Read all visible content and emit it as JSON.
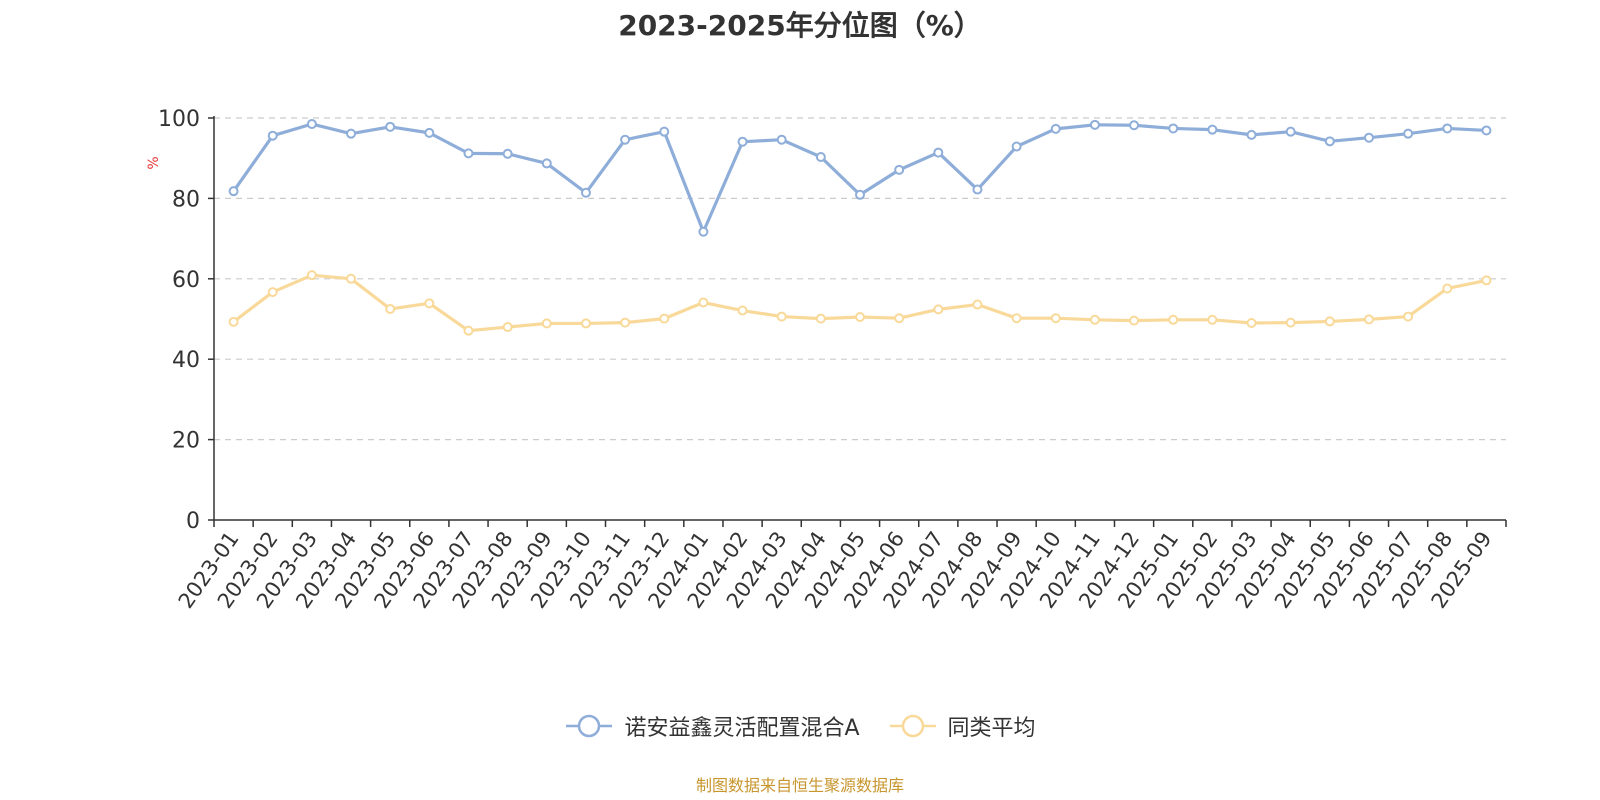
{
  "chart_data": {
    "type": "line",
    "title": "2023-2025年分位图（%）",
    "ylabel": "%",
    "xlabel": "",
    "ylim": [
      0,
      100
    ],
    "yticks": [
      0,
      20,
      40,
      60,
      80,
      100
    ],
    "grid": true,
    "legend_position": "bottom",
    "categories": [
      "2023-01",
      "2023-02",
      "2023-03",
      "2023-04",
      "2023-05",
      "2023-06",
      "2023-07",
      "2023-08",
      "2023-09",
      "2023-10",
      "2023-11",
      "2023-12",
      "2024-01",
      "2024-02",
      "2024-03",
      "2024-04",
      "2024-05",
      "2024-06",
      "2024-07",
      "2024-08",
      "2024-09",
      "2024-10",
      "2024-11",
      "2024-12",
      "2025-01",
      "2025-02",
      "2025-03",
      "2025-04",
      "2025-05",
      "2025-06",
      "2025-07",
      "2025-08",
      "2025-09"
    ],
    "series": [
      {
        "name": "诺安益鑫灵活配置混合A",
        "color": "#8eadd9",
        "values": [
          81.8,
          95.6,
          98.5,
          96.1,
          97.8,
          96.3,
          91.2,
          91.1,
          88.7,
          81.4,
          94.6,
          96.6,
          71.7,
          94.1,
          94.6,
          90.3,
          80.9,
          87.1,
          91.4,
          82.2,
          92.9,
          97.3,
          98.3,
          98.2,
          97.4,
          97.1,
          95.8,
          96.6,
          94.2,
          95.1,
          96.1,
          97.4,
          96.9
        ]
      },
      {
        "name": "同类平均",
        "color": "#f9d99a",
        "values": [
          49.3,
          56.7,
          60.9,
          60.0,
          52.5,
          53.9,
          47.1,
          48.0,
          48.9,
          48.9,
          49.1,
          50.1,
          54.1,
          52.1,
          50.6,
          50.1,
          50.5,
          50.2,
          52.4,
          53.6,
          50.2,
          50.2,
          49.8,
          49.6,
          49.8,
          49.8,
          49.0,
          49.1,
          49.4,
          49.9,
          50.6,
          57.6,
          59.6
        ]
      }
    ]
  },
  "source_note": "制图数据来自恒生聚源数据库"
}
